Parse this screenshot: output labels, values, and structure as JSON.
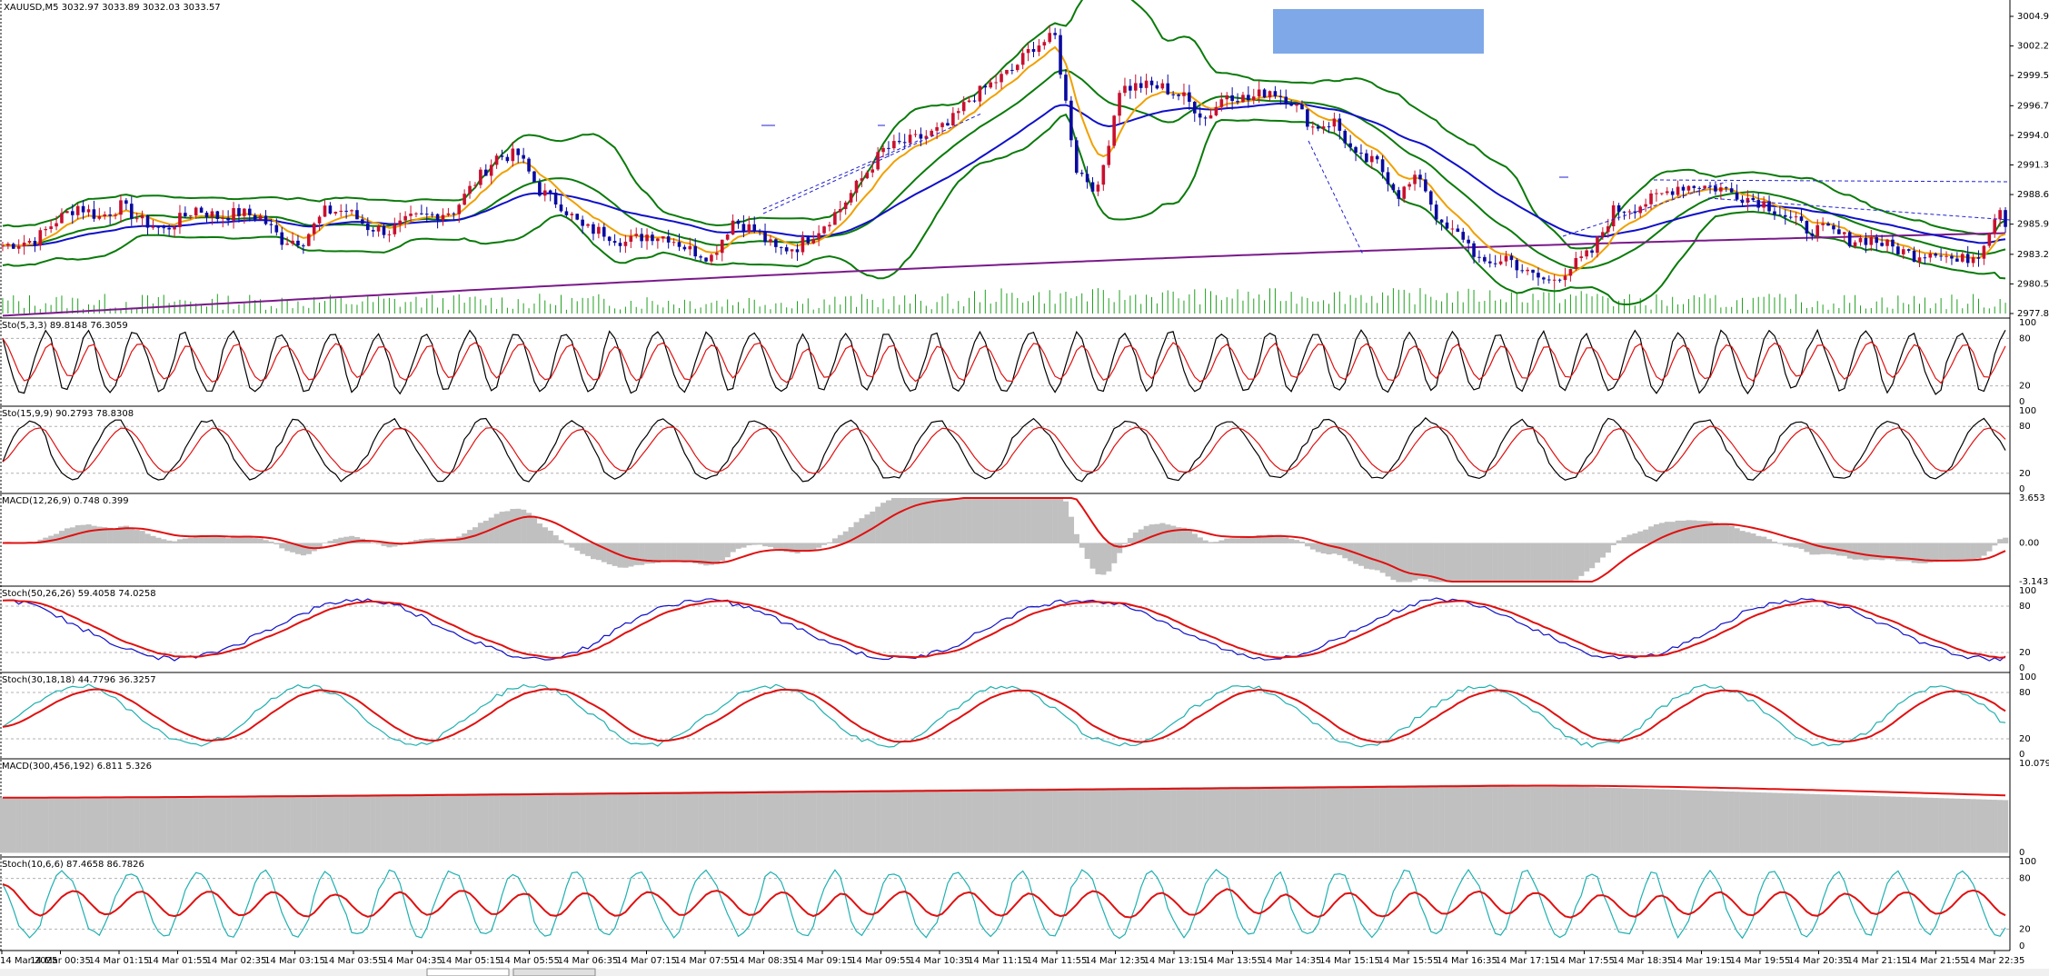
{
  "chart_data": {
    "type": "candlestick",
    "symbol_header": "XAUUSD,M5  3032.97 3033.89 3032.03 3033.57",
    "colors": {
      "bull_candle": "#c8102e",
      "bear_candle": "#0a0aa0",
      "bollinger": "#0a7a0a",
      "ma_fast": "#f0a000",
      "ma_mid": "#1010c8",
      "ma_slow": "#7a1a8a",
      "volume": "#1fa01f",
      "signal_red": "#e01010",
      "stoch_cyan": "#20b0b0",
      "stoch_black": "#000000",
      "histogram": "#c0c0c0",
      "annotation_box": "#7fa8e8"
    },
    "price_axis": {
      "ticks": [
        "3004.90",
        "3002.20",
        "2999.50",
        "2996.75",
        "2994.05",
        "2991.35",
        "2988.65",
        "2985.95",
        "2983.20",
        "2980.50",
        "2977.80"
      ],
      "range": [
        2977.8,
        3004.9
      ]
    },
    "time_labels": [
      "14 Mar 2025",
      "14 Mar 00:35",
      "14 Mar 01:15",
      "14 Mar 01:55",
      "14 Mar 02:35",
      "14 Mar 03:15",
      "14 Mar 03:55",
      "14 Mar 04:35",
      "14 Mar 05:15",
      "14 Mar 05:55",
      "14 Mar 06:35",
      "14 Mar 07:15",
      "14 Mar 07:55",
      "14 Mar 08:35",
      "14 Mar 09:15",
      "14 Mar 09:55",
      "14 Mar 10:35",
      "14 Mar 11:15",
      "14 Mar 11:55",
      "14 Mar 12:35",
      "14 Mar 13:15",
      "14 Mar 13:55",
      "14 Mar 14:35",
      "14 Mar 15:15",
      "14 Mar 15:55",
      "14 Mar 16:35",
      "14 Mar 17:15",
      "14 Mar 17:55",
      "14 Mar 18:35",
      "14 Mar 19:15",
      "14 Mar 19:55",
      "14 Mar 20:35",
      "14 Mar 21:15",
      "14 Mar 21:55",
      "14 Mar 22:35"
    ],
    "close_path": [
      [
        0,
        2984.0
      ],
      [
        6,
        2984.5
      ],
      [
        10,
        2986.3
      ],
      [
        14,
        2987.6
      ],
      [
        18,
        2986.6
      ],
      [
        22,
        2987.6
      ],
      [
        26,
        2986.2
      ],
      [
        30,
        2985.4
      ],
      [
        36,
        2987.4
      ],
      [
        40,
        2986.6
      ],
      [
        44,
        2987.0
      ],
      [
        48,
        2986.6
      ],
      [
        52,
        2984.5
      ],
      [
        56,
        2984.5
      ],
      [
        60,
        2987.1
      ],
      [
        64,
        2987.2
      ],
      [
        68,
        2985.7
      ],
      [
        72,
        2985.3
      ],
      [
        76,
        2986.4
      ],
      [
        80,
        2986.8
      ],
      [
        84,
        2987.2
      ],
      [
        88,
        2989.8
      ],
      [
        92,
        2992.1
      ],
      [
        96,
        2992.3
      ],
      [
        100,
        2989.0
      ],
      [
        104,
        2987.7
      ],
      [
        108,
        2985.6
      ],
      [
        112,
        2985.2
      ],
      [
        116,
        2984.3
      ],
      [
        120,
        2985.0
      ],
      [
        124,
        2984.8
      ],
      [
        128,
        2983.6
      ],
      [
        132,
        2983.0
      ],
      [
        136,
        2986.3
      ],
      [
        140,
        2985.4
      ],
      [
        144,
        2983.6
      ],
      [
        148,
        2983.9
      ],
      [
        152,
        2985.5
      ],
      [
        156,
        2987.4
      ],
      [
        160,
        2990.1
      ],
      [
        164,
        2992.7
      ],
      [
        168,
        2993.4
      ],
      [
        172,
        2994.0
      ],
      [
        176,
        2994.9
      ],
      [
        180,
        2997.3
      ],
      [
        184,
        2998.7
      ],
      [
        188,
        3000.0
      ],
      [
        192,
        3002.2
      ],
      [
        196,
        3003.0
      ],
      [
        200,
        2991.0
      ],
      [
        204,
        2989.0
      ],
      [
        208,
        2998.3
      ],
      [
        212,
        2998.6
      ],
      [
        216,
        2998.4
      ],
      [
        220,
        2997.5
      ],
      [
        224,
        2995.6
      ],
      [
        228,
        2997.9
      ],
      [
        232,
        2997.3
      ],
      [
        236,
        2998.2
      ],
      [
        240,
        2997.2
      ],
      [
        244,
        2994.8
      ],
      [
        248,
        2995.3
      ],
      [
        252,
        2992.0
      ],
      [
        256,
        2991.5
      ],
      [
        260,
        2988.7
      ],
      [
        264,
        2990.3
      ],
      [
        268,
        2985.6
      ],
      [
        272,
        2984.8
      ],
      [
        276,
        2982.0
      ],
      [
        280,
        2983.0
      ],
      [
        284,
        2981.4
      ],
      [
        288,
        2980.7
      ],
      [
        292,
        2982.0
      ],
      [
        296,
        2983.4
      ],
      [
        300,
        2987.2
      ],
      [
        304,
        2987.5
      ],
      [
        308,
        2988.4
      ],
      [
        312,
        2989.4
      ],
      [
        316,
        2989.5
      ],
      [
        320,
        2989.2
      ],
      [
        324,
        2988.5
      ],
      [
        328,
        2987.9
      ],
      [
        332,
        2986.7
      ],
      [
        336,
        2985.5
      ],
      [
        340,
        2985.4
      ],
      [
        344,
        2984.5
      ],
      [
        348,
        2984.6
      ],
      [
        352,
        2983.8
      ],
      [
        356,
        2983.1
      ],
      [
        360,
        2983.6
      ],
      [
        364,
        2982.5
      ],
      [
        368,
        2983.3
      ],
      [
        372,
        2987.7
      ],
      [
        373,
        2985.9
      ]
    ],
    "panes": [
      {
        "label": "Sto(5,3,3) 89.8148 76.3059",
        "levels": [
          "100",
          "80",
          "20",
          "0"
        ]
      },
      {
        "label": "Sto(15,9,9) 90.2793 78.8308",
        "levels": [
          "100",
          "80",
          "20",
          "0"
        ]
      },
      {
        "label": "MACD(12,26,9) 0.748 0.399",
        "levels": [
          "3.653",
          "0.00",
          "-3.143"
        ]
      },
      {
        "label": "Stoch(50,26,26) 59.4058 74.0258",
        "levels": [
          "100",
          "80",
          "20",
          "0"
        ]
      },
      {
        "label": "Stoch(30,18,18) 44.7796 36.3257",
        "levels": [
          "100",
          "80",
          "20",
          "0"
        ]
      },
      {
        "label": "MACD(300,456,192) 6.811 5.326",
        "levels": [
          "10.079",
          "0"
        ]
      },
      {
        "label": "Stoch(10,6,6) 87.4658 86.7826",
        "levels": [
          "100",
          "80",
          "20",
          "0"
        ]
      }
    ]
  }
}
